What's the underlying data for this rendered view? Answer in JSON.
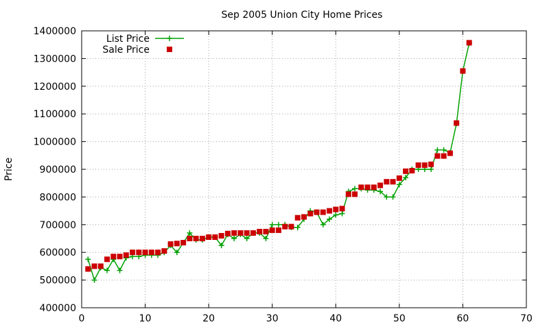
{
  "chart_data": {
    "type": "line",
    "title": "Sep 2005 Union City Home Prices",
    "xlabel": "",
    "ylabel": "Price",
    "xlim": [
      0,
      70
    ],
    "ylim": [
      400000,
      1400000
    ],
    "x_ticks": [
      0,
      10,
      20,
      30,
      40,
      50,
      60,
      70
    ],
    "y_ticks": [
      400000,
      500000,
      600000,
      700000,
      800000,
      900000,
      1000000,
      1100000,
      1200000,
      1300000,
      1400000
    ],
    "grid": true,
    "legend_position": "top-left",
    "series": [
      {
        "name": "List Price",
        "style": "line-with-plus-markers",
        "color": "#00a000",
        "x": [
          1,
          2,
          3,
          4,
          5,
          6,
          7,
          8,
          9,
          10,
          11,
          12,
          13,
          14,
          15,
          16,
          17,
          18,
          19,
          20,
          21,
          22,
          23,
          24,
          25,
          26,
          27,
          28,
          29,
          30,
          31,
          32,
          33,
          34,
          35,
          36,
          37,
          38,
          39,
          40,
          41,
          42,
          43,
          44,
          45,
          46,
          47,
          48,
          49,
          50,
          51,
          52,
          53,
          54,
          55,
          56,
          57,
          58,
          59,
          60,
          61
        ],
        "y": [
          575000,
          500000,
          545000,
          535000,
          575000,
          535000,
          580000,
          585000,
          585000,
          590000,
          590000,
          590000,
          600000,
          625000,
          600000,
          635000,
          670000,
          645000,
          645000,
          655000,
          655000,
          625000,
          665000,
          650000,
          665000,
          650000,
          670000,
          670000,
          650000,
          700000,
          700000,
          700000,
          690000,
          690000,
          720000,
          750000,
          745000,
          700000,
          720000,
          735000,
          740000,
          820000,
          830000,
          830000,
          825000,
          825000,
          820000,
          800000,
          800000,
          845000,
          870000,
          900000,
          900000,
          900000,
          900000,
          970000,
          970000,
          960000,
          1065000,
          1255000,
          1355000
        ]
      },
      {
        "name": "Sale Price",
        "style": "square-markers",
        "color": "#cc0000",
        "x": [
          1,
          2,
          3,
          4,
          5,
          6,
          7,
          8,
          9,
          10,
          11,
          12,
          13,
          14,
          15,
          16,
          17,
          18,
          19,
          20,
          21,
          22,
          23,
          24,
          25,
          26,
          27,
          28,
          29,
          30,
          31,
          32,
          33,
          34,
          35,
          36,
          37,
          38,
          39,
          40,
          41,
          42,
          43,
          44,
          45,
          46,
          47,
          48,
          49,
          50,
          51,
          52,
          53,
          54,
          55,
          56,
          57,
          58,
          59,
          60,
          61
        ],
        "y": [
          540000,
          550000,
          550000,
          575000,
          585000,
          585000,
          590000,
          600000,
          600000,
          600000,
          600000,
          600000,
          605000,
          630000,
          632000,
          635000,
          650000,
          650000,
          650000,
          655000,
          655000,
          660000,
          668000,
          670000,
          670000,
          670000,
          670000,
          675000,
          675000,
          680000,
          680000,
          693000,
          693000,
          725000,
          728000,
          740000,
          745000,
          745000,
          750000,
          755000,
          758000,
          810000,
          810000,
          835000,
          835000,
          835000,
          842000,
          855000,
          855000,
          868000,
          893000,
          895000,
          915000,
          915000,
          918000,
          948000,
          948000,
          958000,
          1067000,
          1255000,
          1357000
        ]
      }
    ]
  }
}
